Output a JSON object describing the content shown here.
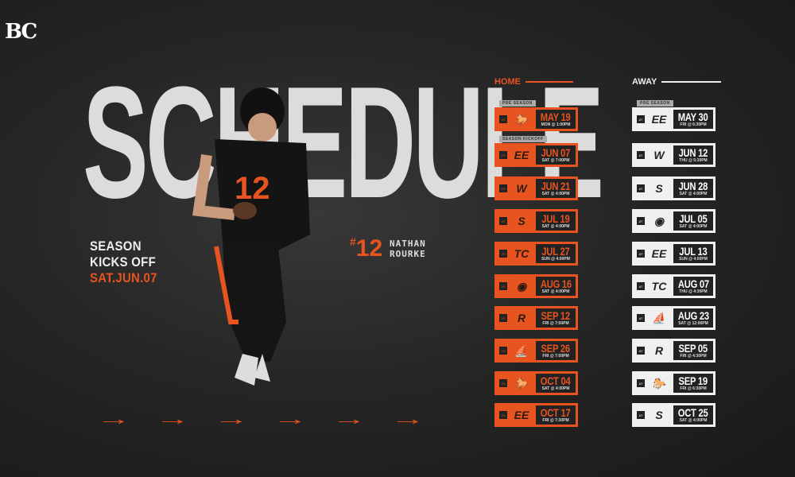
{
  "brand": {
    "logo_text": "BC",
    "accent": "#e8541f"
  },
  "title": "SCHEDULE",
  "kickoff": {
    "line1": "SEASON",
    "line2": "KICKS OFF",
    "date": "SAT.JUN.07"
  },
  "player": {
    "number": "12",
    "first": "NATHAN",
    "last": "ROURKE"
  },
  "home": {
    "label": "HOME",
    "games": [
      {
        "tag": "PRE SEASON",
        "prefix": "VS",
        "icon": "stampeders-logo-icon",
        "logo": "🐎",
        "date": "MAY 19",
        "time": "MON @ 1:00PM"
      },
      {
        "tag": "SEASON KICKOFF",
        "prefix": "VS",
        "icon": "elks-logo-icon",
        "logo": "EE",
        "date": "JUN 07",
        "time": "SAT @ 7:00PM"
      },
      {
        "prefix": "VS",
        "icon": "blue-bombers-logo-icon",
        "logo": "W",
        "date": "JUN 21",
        "time": "SAT @ 4:00PM"
      },
      {
        "prefix": "VS",
        "icon": "roughriders-logo-icon",
        "logo": "S",
        "date": "JUL 19",
        "time": "SAT @ 4:00PM"
      },
      {
        "prefix": "VS",
        "icon": "tiger-cats-logo-icon",
        "logo": "TC",
        "date": "JUL 27",
        "time": "SUN @ 4:00PM"
      },
      {
        "prefix": "VS",
        "icon": "alouettes-logo-icon",
        "logo": "◉",
        "date": "AUG 16",
        "time": "SAT @ 4:00PM"
      },
      {
        "prefix": "VS",
        "icon": "redblacks-logo-icon",
        "logo": "R",
        "date": "SEP 12",
        "time": "FRI @ 7:00PM"
      },
      {
        "prefix": "VS",
        "icon": "argonauts-logo-icon",
        "logo": "⛵",
        "date": "SEP 26",
        "time": "FRI @ 7:00PM"
      },
      {
        "prefix": "VS",
        "icon": "stampeders-logo-icon",
        "logo": "🐎",
        "date": "OCT 04",
        "time": "SAT @ 4:00PM"
      },
      {
        "prefix": "VS",
        "icon": "elks-logo-icon",
        "logo": "EE",
        "date": "OCT 17",
        "time": "FRI @ 7:30PM"
      }
    ]
  },
  "away": {
    "label": "AWAY",
    "games": [
      {
        "tag": "PRE SEASON",
        "prefix": "AT",
        "icon": "elks-logo-icon",
        "logo": "EE",
        "date": "MAY 30",
        "time": "FRI @ 6:30PM"
      },
      {
        "prefix": "AT",
        "icon": "blue-bombers-logo-icon",
        "logo": "W",
        "date": "JUN 12",
        "time": "THU @ 5:30PM"
      },
      {
        "prefix": "AT",
        "icon": "roughriders-logo-icon",
        "logo": "S",
        "date": "JUN 28",
        "time": "SAT @ 4:00PM"
      },
      {
        "prefix": "AT",
        "icon": "alouettes-logo-icon",
        "logo": "◉",
        "date": "JUL 05",
        "time": "SAT @ 4:00PM"
      },
      {
        "prefix": "AT",
        "icon": "elks-logo-icon",
        "logo": "EE",
        "date": "JUL 13",
        "time": "SUN @ 4:00PM"
      },
      {
        "prefix": "AT",
        "icon": "tiger-cats-logo-icon",
        "logo": "TC",
        "date": "AUG 07",
        "time": "THU @ 4:30PM"
      },
      {
        "prefix": "AT",
        "icon": "argonauts-logo-icon",
        "logo": "⛵",
        "date": "AUG 23",
        "time": "SAT @ 12:00PM"
      },
      {
        "prefix": "AT",
        "icon": "redblacks-logo-icon",
        "logo": "R",
        "date": "SEP 05",
        "time": "FRI @ 4:30PM"
      },
      {
        "prefix": "AT",
        "icon": "stampeders-logo-icon",
        "logo": "🐎",
        "date": "SEP 19",
        "time": "FRI @ 6:30PM"
      },
      {
        "prefix": "AT",
        "icon": "roughriders-logo-icon",
        "logo": "S",
        "date": "OCT 25",
        "time": "SAT @ 4:00PM"
      }
    ]
  }
}
